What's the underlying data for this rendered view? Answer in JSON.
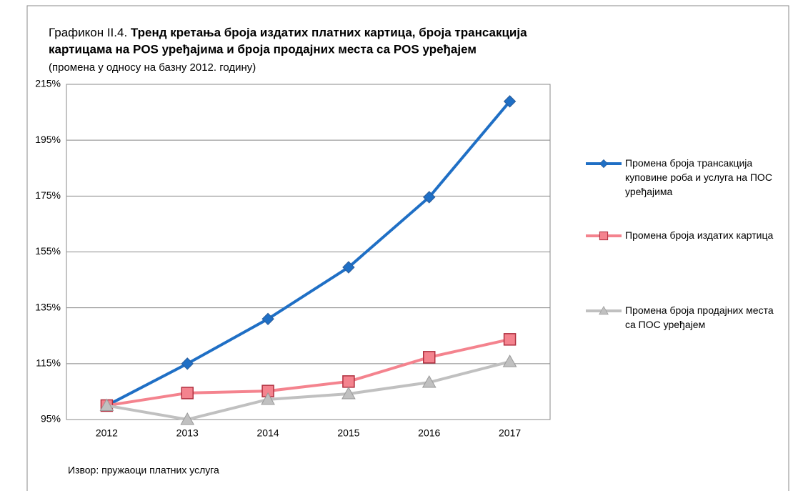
{
  "chart_data": {
    "type": "line",
    "title": [
      "Графикон II.4.",
      "Тренд кретања броја издатих платних картица, броја трансакција",
      "картицама на POS уређајима и броја продајних места са  POS уређајем"
    ],
    "subtitle": "(промена у односу на базну 2012. годину)",
    "source": "Извор: пружаоци платних услуга",
    "categories": [
      "2012",
      "2013",
      "2014",
      "2015",
      "2016",
      "2017"
    ],
    "series": [
      {
        "name": "Промена броја трансакција куповине роба и услуга на ПОС уређајима",
        "color": "#1f6fc5",
        "marker": "diamond",
        "values": [
          100,
          115,
          131,
          149.5,
          174.6,
          208.9
        ]
      },
      {
        "name": "Промена броја издатих картица",
        "color": "#f4838e",
        "marker": "square",
        "values": [
          100,
          104.5,
          105.2,
          108.6,
          117.3,
          123.7
        ]
      },
      {
        "name": "Промена броја продајних места са ПОС уређајем",
        "color": "#c0c0c0",
        "marker": "triangle",
        "values": [
          100,
          95,
          102.2,
          104.2,
          108.3,
          115.7
        ]
      }
    ],
    "ylim": [
      95,
      215
    ],
    "yticks": [
      {
        "value": 95,
        "label": "95%"
      },
      {
        "value": 115,
        "label": "115%"
      },
      {
        "value": 135,
        "label": "135%"
      },
      {
        "value": 155,
        "label": "155%"
      },
      {
        "value": 175,
        "label": "175%"
      },
      {
        "value": 195,
        "label": "195%"
      },
      {
        "value": 215,
        "label": "215%"
      }
    ],
    "grid": true,
    "legend": "right"
  }
}
